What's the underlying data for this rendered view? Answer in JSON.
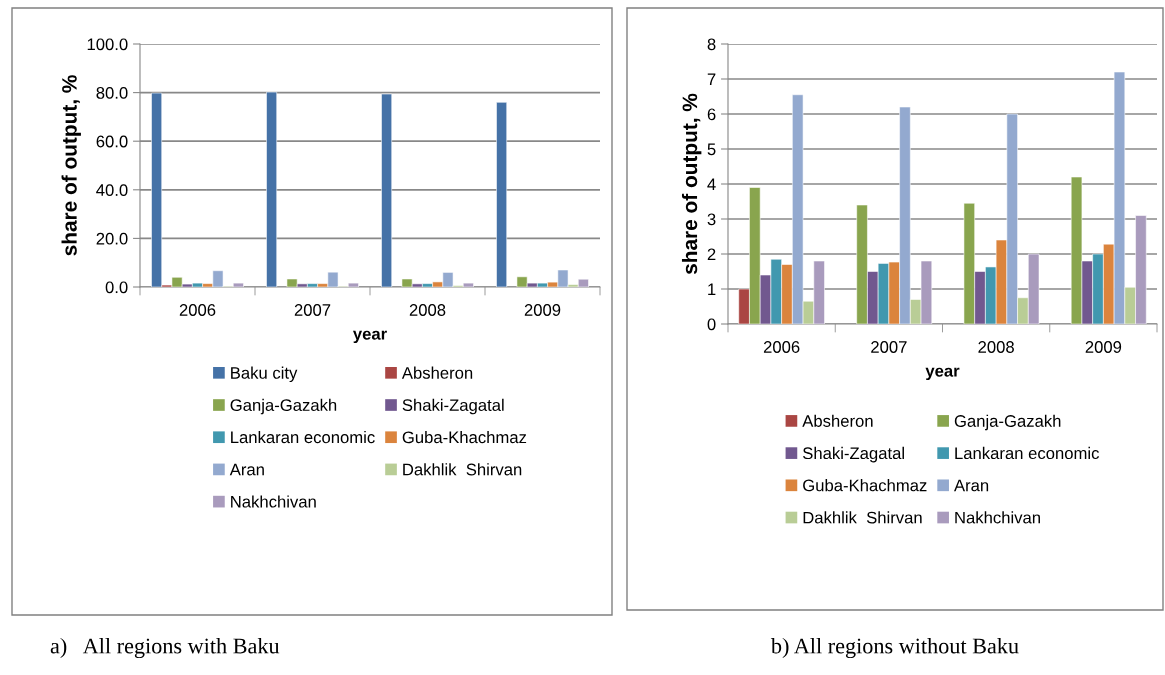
{
  "chart_data": [
    {
      "type": "bar",
      "xlabel": "year",
      "ylabel": "share of output, %",
      "categories": [
        "2006",
        "2007",
        "2008",
        "2009"
      ],
      "ylim": [
        0,
        100
      ],
      "yticks": [
        {
          "value": 0,
          "label": "0.0"
        },
        {
          "value": 20,
          "label": "20.0"
        },
        {
          "value": 40,
          "label": "40.0"
        },
        {
          "value": 60,
          "label": "60.0"
        },
        {
          "value": 80,
          "label": "80.0"
        },
        {
          "value": 100,
          "label": "100.0"
        }
      ],
      "grid": "y",
      "legend": "bottom",
      "annotations": [
        "a)   All regions with Baku"
      ],
      "series": [
        {
          "name": "Baku city",
          "color": "#4572a7",
          "values": [
            79.8,
            80.2,
            79.4,
            76.0
          ]
        },
        {
          "name": "Absheron",
          "color": "#aa4643",
          "values": [
            0.8,
            null,
            null,
            null
          ]
        },
        {
          "name": "Ganja-Gazakh",
          "color": "#89a54e",
          "values": [
            4.0,
            3.3,
            3.3,
            4.2
          ]
        },
        {
          "name": "Shaki-Zagatal",
          "color": "#71588f",
          "values": [
            1.2,
            1.3,
            1.3,
            1.6
          ]
        },
        {
          "name": "Lankaran economic",
          "color": "#4198af",
          "values": [
            1.6,
            1.4,
            1.4,
            1.6
          ]
        },
        {
          "name": "Guba-Khachmaz",
          "color": "#db843d",
          "values": [
            1.4,
            1.4,
            2.1,
            2.0
          ]
        },
        {
          "name": "Aran",
          "color": "#93a9cf",
          "values": [
            6.7,
            6.1,
            6.0,
            7.0
          ]
        },
        {
          "name": "Dakhlik  Shirvan",
          "color": "#b9cd96",
          "values": [
            0.3,
            0.3,
            0.6,
            1.0
          ]
        },
        {
          "name": "Nakhchivan",
          "color": "#a99bbd",
          "values": [
            1.6,
            1.6,
            1.6,
            3.2
          ]
        }
      ]
    },
    {
      "type": "bar",
      "xlabel": "year",
      "ylabel": "share of output, %",
      "categories": [
        "2006",
        "2007",
        "2008",
        "2009"
      ],
      "ylim": [
        0,
        8
      ],
      "yticks": [
        0,
        1,
        2,
        3,
        4,
        5,
        6,
        7,
        8
      ],
      "grid": "y",
      "legend": "bottom",
      "annotations": [
        "b) All regions without Baku"
      ],
      "series": [
        {
          "name": "Absheron",
          "color": "#aa4643",
          "values": [
            1.0,
            null,
            null,
            null
          ]
        },
        {
          "name": "Ganja-Gazakh",
          "color": "#89a54e",
          "values": [
            3.9,
            3.4,
            3.45,
            4.2
          ]
        },
        {
          "name": "Shaki-Zagatal",
          "color": "#71588f",
          "values": [
            1.4,
            1.5,
            1.5,
            1.8
          ]
        },
        {
          "name": "Lankaran economic",
          "color": "#4198af",
          "values": [
            1.85,
            1.73,
            1.63,
            2.0
          ]
        },
        {
          "name": "Guba-Khachmaz",
          "color": "#db843d",
          "values": [
            1.7,
            1.77,
            2.4,
            2.28
          ]
        },
        {
          "name": "Aran",
          "color": "#93a9cf",
          "values": [
            6.55,
            6.2,
            6.0,
            7.2
          ]
        },
        {
          "name": "Dakhlik  Shirvan",
          "color": "#b9cd96",
          "values": [
            0.65,
            0.7,
            0.75,
            1.05
          ]
        },
        {
          "name": "Nakhchivan",
          "color": "#a99bbd",
          "values": [
            1.8,
            1.8,
            2.0,
            3.1
          ]
        }
      ]
    }
  ]
}
